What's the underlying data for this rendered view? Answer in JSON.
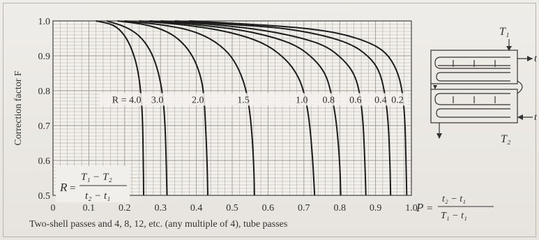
{
  "chart_data": {
    "type": "line",
    "ylabel": "Correction factor F",
    "xlim": [
      0,
      1.0
    ],
    "ylim": [
      0.5,
      1.0
    ],
    "x_ticks": [
      "0",
      "0.1",
      "0.2",
      "0.3",
      "0.4",
      "0.5",
      "0.6",
      "0.7",
      "0.8",
      "0.9",
      "1.0"
    ],
    "y_ticks": [
      "0.5",
      "0.6",
      "0.7",
      "0.8",
      "0.9",
      "1.0"
    ],
    "grid": true,
    "r_label_prefix": "R = ",
    "series": [
      {
        "name": "4.0",
        "points": [
          [
            0.12,
            1.0
          ],
          [
            0.17,
            0.99
          ],
          [
            0.2,
            0.96
          ],
          [
            0.22,
            0.92
          ],
          [
            0.235,
            0.87
          ],
          [
            0.245,
            0.8
          ],
          [
            0.25,
            0.72
          ],
          [
            0.252,
            0.6
          ],
          [
            0.253,
            0.5
          ]
        ]
      },
      {
        "name": "3.0",
        "points": [
          [
            0.15,
            1.0
          ],
          [
            0.2,
            0.985
          ],
          [
            0.24,
            0.96
          ],
          [
            0.27,
            0.92
          ],
          [
            0.29,
            0.87
          ],
          [
            0.305,
            0.8
          ],
          [
            0.312,
            0.72
          ],
          [
            0.316,
            0.6
          ],
          [
            0.318,
            0.5
          ]
        ]
      },
      {
        "name": "2.0",
        "points": [
          [
            0.18,
            1.0
          ],
          [
            0.26,
            0.99
          ],
          [
            0.32,
            0.97
          ],
          [
            0.36,
            0.94
          ],
          [
            0.39,
            0.9
          ],
          [
            0.41,
            0.85
          ],
          [
            0.42,
            0.8
          ],
          [
            0.425,
            0.72
          ],
          [
            0.43,
            0.6
          ],
          [
            0.432,
            0.5
          ]
        ]
      },
      {
        "name": "1.5",
        "points": [
          [
            0.2,
            1.0
          ],
          [
            0.3,
            0.99
          ],
          [
            0.38,
            0.975
          ],
          [
            0.44,
            0.95
          ],
          [
            0.49,
            0.91
          ],
          [
            0.52,
            0.86
          ],
          [
            0.54,
            0.8
          ],
          [
            0.552,
            0.72
          ],
          [
            0.56,
            0.6
          ],
          [
            0.562,
            0.5
          ]
        ]
      },
      {
        "name": "1.0",
        "points": [
          [
            0.24,
            1.0
          ],
          [
            0.36,
            0.99
          ],
          [
            0.46,
            0.975
          ],
          [
            0.54,
            0.955
          ],
          [
            0.6,
            0.93
          ],
          [
            0.65,
            0.89
          ],
          [
            0.68,
            0.85
          ],
          [
            0.7,
            0.8
          ],
          [
            0.715,
            0.72
          ],
          [
            0.725,
            0.6
          ],
          [
            0.73,
            0.5
          ]
        ]
      },
      {
        "name": "0.8",
        "points": [
          [
            0.27,
            1.0
          ],
          [
            0.4,
            0.99
          ],
          [
            0.52,
            0.975
          ],
          [
            0.61,
            0.955
          ],
          [
            0.68,
            0.93
          ],
          [
            0.73,
            0.89
          ],
          [
            0.76,
            0.85
          ],
          [
            0.775,
            0.8
          ],
          [
            0.79,
            0.72
          ],
          [
            0.8,
            0.6
          ],
          [
            0.803,
            0.5
          ]
        ]
      },
      {
        "name": "0.6",
        "points": [
          [
            0.3,
            1.0
          ],
          [
            0.45,
            0.99
          ],
          [
            0.58,
            0.975
          ],
          [
            0.68,
            0.955
          ],
          [
            0.76,
            0.93
          ],
          [
            0.81,
            0.89
          ],
          [
            0.84,
            0.85
          ],
          [
            0.855,
            0.8
          ],
          [
            0.865,
            0.72
          ],
          [
            0.87,
            0.6
          ],
          [
            0.873,
            0.5
          ]
        ]
      },
      {
        "name": "0.4",
        "points": [
          [
            0.34,
            1.0
          ],
          [
            0.5,
            0.99
          ],
          [
            0.64,
            0.98
          ],
          [
            0.75,
            0.96
          ],
          [
            0.83,
            0.935
          ],
          [
            0.88,
            0.9
          ],
          [
            0.91,
            0.86
          ],
          [
            0.925,
            0.8
          ],
          [
            0.935,
            0.72
          ],
          [
            0.94,
            0.6
          ],
          [
            0.942,
            0.5
          ]
        ]
      },
      {
        "name": "0.2",
        "points": [
          [
            0.38,
            1.0
          ],
          [
            0.56,
            0.99
          ],
          [
            0.7,
            0.98
          ],
          [
            0.8,
            0.965
          ],
          [
            0.88,
            0.94
          ],
          [
            0.93,
            0.91
          ],
          [
            0.96,
            0.86
          ],
          [
            0.975,
            0.8
          ],
          [
            0.982,
            0.72
          ],
          [
            0.985,
            0.6
          ],
          [
            0.987,
            0.5
          ]
        ]
      }
    ],
    "r_formula": {
      "lhs": "R",
      "num": "T₁ − T₂",
      "den": "t₂ − t₁"
    },
    "p_formula": {
      "lhs": "P",
      "num": "t₂ − t₁",
      "den": "T₁ − t₁"
    },
    "schematic": {
      "in_hot": "T₁",
      "out_hot": "T₂",
      "cold": "t"
    },
    "caption": "Two-shell passes and 4, 8, 12, etc. (any multiple of 4), tube passes"
  }
}
